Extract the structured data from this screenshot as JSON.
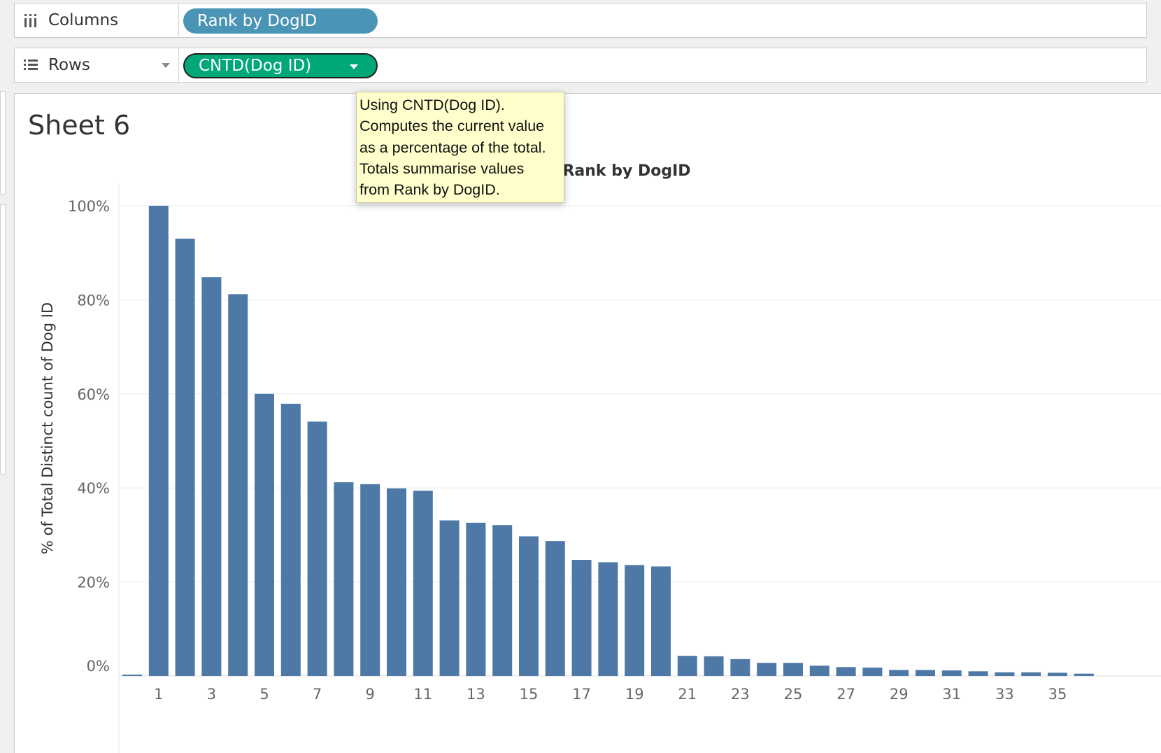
{
  "shelves": {
    "columns": {
      "label": "Columns",
      "icon": "columns-shelf-icon",
      "pill": "Rank by DogID"
    },
    "rows": {
      "label": "Rows",
      "icon": "rows-shelf-icon",
      "pill": "CNTD(Dog ID)"
    }
  },
  "sheet": {
    "title": "Sheet 6"
  },
  "tooltip": {
    "lines": [
      "Using CNTD(Dog ID).",
      "Computes the current value",
      "as a percentage of the total.",
      "Totals summarise values",
      "from Rank by DogID."
    ]
  },
  "colors": {
    "bar": "#4e79a7",
    "columns_pill": "#4a94b5",
    "rows_pill": "#00a879"
  },
  "chart_data": {
    "type": "bar",
    "xlabel": "Rank by DogID",
    "ylabel": "% of Total Distinct count of Dog ID",
    "ylim": [
      0,
      100
    ],
    "y_ticks": [
      "0%",
      "20%",
      "40%",
      "60%",
      "80%",
      "100%"
    ],
    "x_tick_labels": [
      "1",
      "3",
      "5",
      "7",
      "9",
      "11",
      "13",
      "15",
      "17",
      "19",
      "21",
      "23",
      "25",
      "27",
      "29",
      "31",
      "33",
      "35"
    ],
    "grid": true,
    "categories": [
      0,
      1,
      2,
      3,
      4,
      5,
      6,
      7,
      8,
      9,
      10,
      11,
      12,
      13,
      14,
      15,
      16,
      17,
      18,
      19,
      20,
      21,
      22,
      23,
      24,
      25,
      26,
      27,
      28,
      29,
      30,
      31,
      32,
      33,
      34,
      35,
      36
    ],
    "values": [
      0.3,
      100,
      93,
      84.8,
      81.2,
      60,
      57.9,
      54.1,
      41.2,
      40.8,
      39.9,
      39.4,
      33.1,
      32.6,
      32.1,
      29.7,
      28.7,
      24.7,
      24.2,
      23.6,
      23.3,
      4.3,
      4.2,
      3.6,
      2.8,
      2.8,
      2.2,
      1.9,
      1.8,
      1.3,
      1.3,
      1.2,
      1.0,
      0.8,
      0.8,
      0.7,
      0.5
    ]
  }
}
